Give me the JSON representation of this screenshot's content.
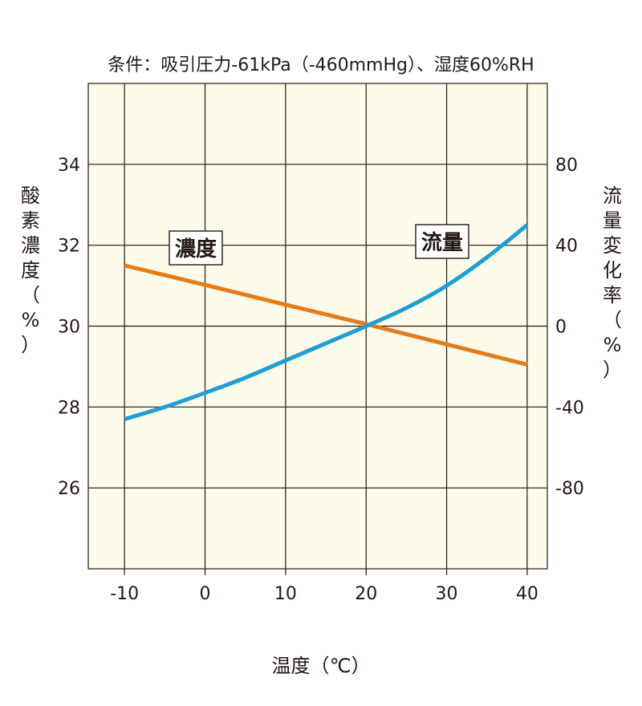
{
  "chart_data": {
    "type": "line",
    "title": "条件：吸引圧力-61kPa（-460mmHg）、湿度60%RH",
    "xlabel": "温度（℃）",
    "ylabel_left": "酸素濃度（%）",
    "ylabel_right": "流量変化率（%）",
    "x_ticks": [
      "-10",
      "0",
      "10",
      "20",
      "30",
      "40"
    ],
    "x_tick_values": [
      -10,
      0,
      10,
      20,
      30,
      40
    ],
    "xlim": [
      -14.5,
      42.5
    ],
    "y_left_ticks": [
      "26",
      "28",
      "30",
      "32",
      "34"
    ],
    "y_left_tick_values": [
      26,
      28,
      30,
      32,
      34
    ],
    "ylim_left": [
      24,
      36
    ],
    "y_right_ticks": [
      "-80",
      "-40",
      "0",
      "40",
      "80"
    ],
    "y_right_tick_values": [
      -80,
      -40,
      0,
      40,
      80
    ],
    "ylim_right": [
      -120,
      120
    ],
    "grid": true,
    "colors": {
      "plot_bg": "#fdfbe9",
      "grid": "#231815",
      "concentration": "#ea7a15",
      "flow": "#1a9fdc"
    },
    "series": [
      {
        "name": "濃度",
        "axis": "left",
        "color": "#ea7a15",
        "x": [
          -10,
          0,
          10,
          20,
          30,
          40
        ],
        "y": [
          31.5,
          31.02,
          30.53,
          30.05,
          29.55,
          29.05
        ]
      },
      {
        "name": "流量",
        "axis": "right",
        "color": "#1a9fdc",
        "x": [
          -10,
          -5,
          0,
          5,
          10,
          15,
          20,
          25,
          30,
          35,
          40
        ],
        "y": [
          -46,
          -40,
          -33,
          -25.5,
          -17,
          -8.5,
          0,
          9,
          20,
          34,
          50
        ]
      }
    ]
  }
}
